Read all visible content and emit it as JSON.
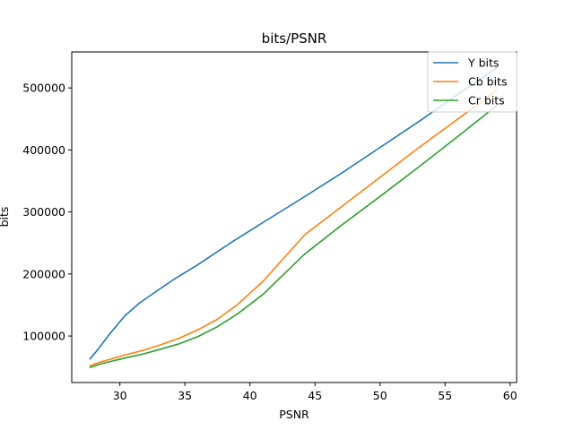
{
  "chart_data": {
    "type": "line",
    "title": "bits/PSNR",
    "xlabel": "PSNR",
    "ylabel": "bits",
    "xlim": [
      26.3,
      60.5
    ],
    "ylim": [
      25000,
      558000
    ],
    "xticks": [
      30,
      35,
      40,
      45,
      50,
      55,
      60
    ],
    "yticks": [
      100000,
      200000,
      300000,
      400000,
      500000
    ],
    "grid": false,
    "legend_position": "top-right",
    "series": [
      {
        "name": "Y bits",
        "color": "#1f77b4",
        "x": [
          27.7,
          28.3,
          29.2,
          30.4,
          31.5,
          32.8,
          34.2,
          36.0,
          38.5,
          41.0,
          44.0,
          47.0,
          50.0,
          53.0,
          56.0,
          59.0
        ],
        "y": [
          63000,
          78000,
          103000,
          133000,
          153000,
          172000,
          192000,
          215000,
          250000,
          283000,
          322000,
          362000,
          404000,
          446000,
          490000,
          533000
        ]
      },
      {
        "name": "Cb bits",
        "color": "#ff7f0e",
        "x": [
          27.7,
          28.5,
          29.5,
          30.5,
          31.8,
          33.0,
          34.5,
          36.0,
          37.5,
          39.0,
          41.0,
          44.2,
          47.0,
          50.0,
          53.0,
          56.0,
          59.0
        ],
        "y": [
          52000,
          58000,
          64000,
          70000,
          77000,
          85000,
          96000,
          110000,
          127000,
          150000,
          188000,
          263000,
          308000,
          356000,
          404000,
          450000,
          497000
        ]
      },
      {
        "name": "Cr bits",
        "color": "#2ca02c",
        "x": [
          27.7,
          28.5,
          29.5,
          30.5,
          31.8,
          33.0,
          34.5,
          36.0,
          37.5,
          39.0,
          41.0,
          44.2,
          47.0,
          50.0,
          53.0,
          56.0,
          59.0
        ],
        "y": [
          49000,
          55000,
          60000,
          65000,
          71000,
          78000,
          87000,
          99000,
          115000,
          135000,
          167000,
          232000,
          278000,
          325000,
          373000,
          422000,
          472000
        ]
      }
    ]
  }
}
